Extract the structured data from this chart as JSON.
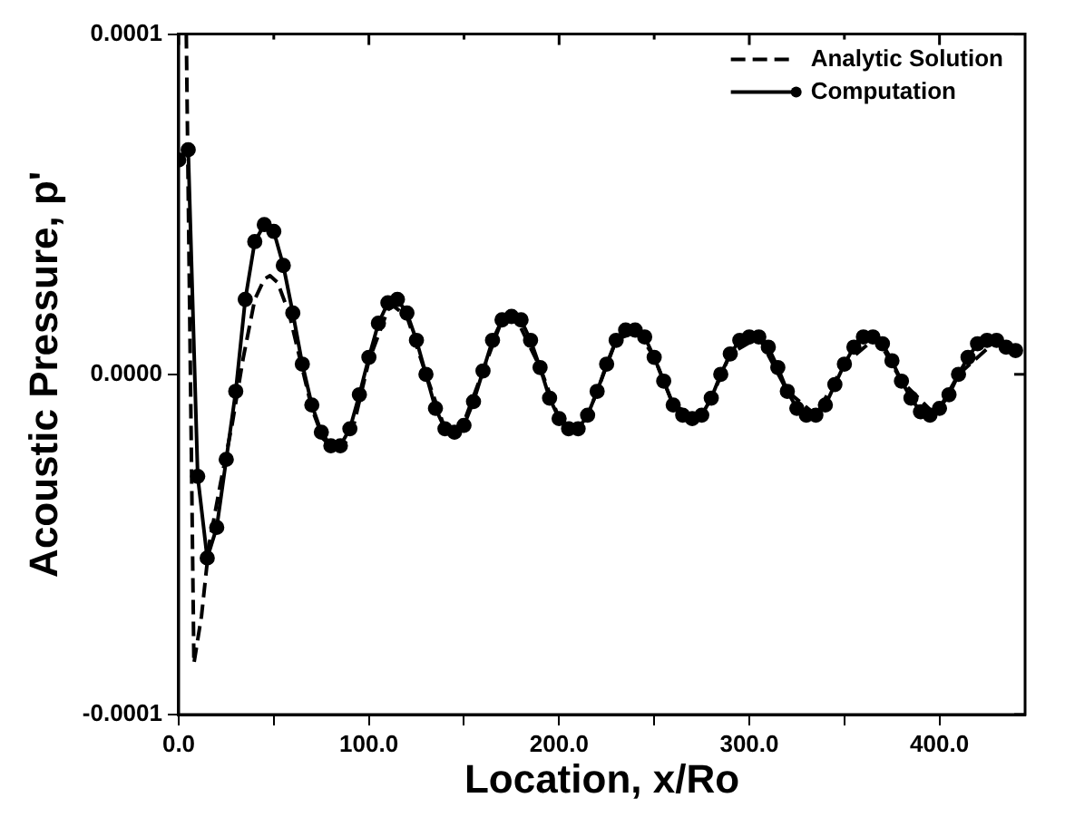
{
  "chart_data": {
    "type": "line",
    "xlabel": "Location, x/Ro",
    "ylabel": "Acoustic Pressure, p'",
    "xlim": [
      0,
      445
    ],
    "ylim": [
      -0.0001,
      0.0001
    ],
    "xticks": [
      {
        "value": 0,
        "label": "0.0"
      },
      {
        "value": 50,
        "label": null
      },
      {
        "value": 100,
        "label": "100.0"
      },
      {
        "value": 150,
        "label": null
      },
      {
        "value": 200,
        "label": "200.0"
      },
      {
        "value": 250,
        "label": null
      },
      {
        "value": 300,
        "label": "300.0"
      },
      {
        "value": 350,
        "label": null
      },
      {
        "value": 400,
        "label": "400.0"
      }
    ],
    "yticks": [
      {
        "value": -0.0001,
        "label": "-0.0001"
      },
      {
        "value": 0,
        "label": "0.0000"
      },
      {
        "value": 0.0001,
        "label": "0.0001"
      }
    ],
    "grid": false,
    "legend": "top right",
    "series": [
      {
        "name": "Analytic Solution",
        "color": "#000000",
        "line_style": "dashed",
        "marker": "none",
        "x": [
          4,
          8,
          12,
          16,
          22,
          28,
          34,
          40,
          45,
          48,
          52,
          58,
          64,
          70,
          76,
          82,
          86,
          92,
          100,
          110,
          113,
          120,
          130,
          140,
          148,
          160,
          170,
          177,
          190,
          200,
          212,
          220,
          230,
          241,
          250,
          260,
          274,
          280,
          290,
          305,
          320,
          335,
          350,
          367,
          380,
          398,
          410,
          430,
          440
        ],
        "values": [
          0.0001,
          -8.5e-05,
          -7.1e-05,
          -5e-05,
          -3.2e-05,
          -1.5e-05,
          5e-06,
          2.2e-05,
          2.8e-05,
          2.9e-05,
          2.7e-05,
          1.8e-05,
          4e-06,
          -1e-05,
          -1.9e-05,
          -2.2e-05,
          -2.2e-05,
          -1.5e-05,
          4e-06,
          1.9e-05,
          2e-05,
          1.7e-05,
          0,
          -1.6e-05,
          -1.7e-05,
          1e-06,
          1.6e-05,
          1.7e-05,
          2e-06,
          -1.3e-05,
          -1.6e-05,
          -5e-06,
          1e-05,
          1.3e-05,
          5e-06,
          -9e-06,
          -1.3e-05,
          -7e-06,
          6e-06,
          1.1e-05,
          -5e-06,
          -1.2e-05,
          3e-06,
          1.1e-05,
          -2e-06,
          -1.2e-05,
          0,
          1e-05,
          7e-06
        ]
      },
      {
        "name": "Computation",
        "color": "#000000",
        "line_style": "solid",
        "marker": "circle",
        "x": [
          0,
          5,
          10,
          15,
          20,
          25,
          30,
          35,
          40,
          45,
          50,
          55,
          60,
          65,
          70,
          75,
          80,
          85,
          90,
          95,
          100,
          105,
          110,
          115,
          120,
          125,
          130,
          135,
          140,
          145,
          150,
          155,
          160,
          165,
          170,
          175,
          180,
          185,
          190,
          195,
          200,
          205,
          210,
          215,
          220,
          225,
          230,
          235,
          240,
          245,
          250,
          255,
          260,
          265,
          270,
          275,
          280,
          285,
          290,
          295,
          300,
          305,
          310,
          315,
          320,
          325,
          330,
          335,
          340,
          345,
          350,
          355,
          360,
          365,
          370,
          375,
          380,
          385,
          390,
          395,
          400,
          405,
          410,
          415,
          420,
          425,
          430,
          435,
          440
        ],
        "values": [
          6.3e-05,
          6.6e-05,
          -3e-05,
          -5.4e-05,
          -4.5e-05,
          -2.5e-05,
          -5e-06,
          2.2e-05,
          3.9e-05,
          4.4e-05,
          4.2e-05,
          3.2e-05,
          1.8e-05,
          3e-06,
          -9e-06,
          -1.7e-05,
          -2.1e-05,
          -2.1e-05,
          -1.6e-05,
          -6e-06,
          5e-06,
          1.5e-05,
          2.1e-05,
          2.2e-05,
          1.8e-05,
          1e-05,
          0,
          -1e-05,
          -1.6e-05,
          -1.7e-05,
          -1.5e-05,
          -8e-06,
          1e-06,
          1e-05,
          1.6e-05,
          1.7e-05,
          1.6e-05,
          1e-05,
          2e-06,
          -7e-06,
          -1.3e-05,
          -1.6e-05,
          -1.6e-05,
          -1.2e-05,
          -5e-06,
          3e-06,
          1e-05,
          1.3e-05,
          1.3e-05,
          1.1e-05,
          5e-06,
          -2e-06,
          -9e-06,
          -1.2e-05,
          -1.3e-05,
          -1.2e-05,
          -7e-06,
          0,
          6e-06,
          1e-05,
          1.1e-05,
          1.1e-05,
          8e-06,
          2e-06,
          -5e-06,
          -1e-05,
          -1.2e-05,
          -1.2e-05,
          -9e-06,
          -3e-06,
          3e-06,
          8e-06,
          1.1e-05,
          1.1e-05,
          9e-06,
          4e-06,
          -2e-06,
          -7e-06,
          -1.1e-05,
          -1.2e-05,
          -1e-05,
          -6e-06,
          0,
          5e-06,
          9e-06,
          1e-05,
          1e-05,
          8e-06,
          7e-06
        ]
      }
    ]
  }
}
